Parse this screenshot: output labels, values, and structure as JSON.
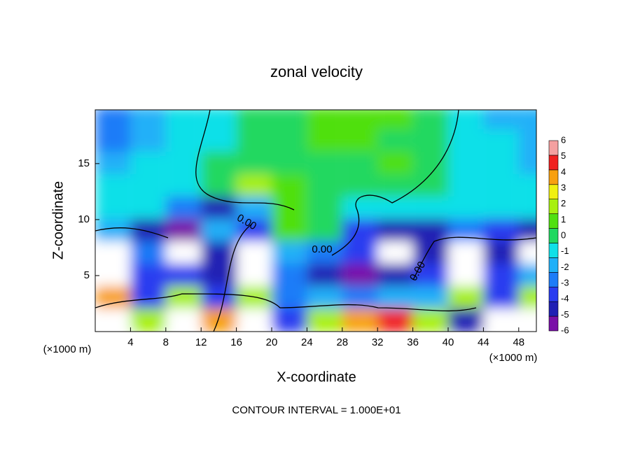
{
  "chart_data": {
    "type": "contour",
    "title": "zonal velocity",
    "xlabel": "X-coordinate",
    "ylabel": "Z-coordinate",
    "x_unit_left": "(×1000 m)",
    "x_unit_right": "(×1000 m)",
    "footer": "CONTOUR INTERVAL = 1.000E+01",
    "contour_labels": [
      {
        "value": 0,
        "label": "0.00"
      },
      {
        "value": 0,
        "label": "0.00"
      },
      {
        "value": 0,
        "label": "0.00"
      }
    ],
    "xlim": [
      0,
      50
    ],
    "ylim": [
      0,
      19.8
    ],
    "xticks": [
      4,
      8,
      12,
      16,
      20,
      24,
      28,
      32,
      36,
      40,
      44,
      48
    ],
    "yticks": [
      5,
      10,
      15
    ],
    "x": [
      2,
      6,
      10,
      14,
      18,
      22,
      26,
      30,
      34,
      38,
      42,
      46,
      50
    ],
    "y": [
      19,
      17,
      15,
      13,
      11,
      9,
      7,
      5,
      3,
      1
    ],
    "z": [
      [
        -2,
        -1.5,
        -0.5,
        0,
        0.5,
        1,
        1.5,
        2,
        1.5,
        0.5,
        0,
        -1,
        -1.5
      ],
      [
        -2,
        -1,
        0,
        0,
        0.5,
        1,
        1.5,
        1.5,
        1,
        0.5,
        0,
        -0.5,
        -1
      ],
      [
        -1,
        -0.5,
        0,
        0.5,
        1,
        1,
        1,
        1,
        1.5,
        1,
        0,
        -0.5,
        -1
      ],
      [
        0,
        0,
        0,
        1,
        2.5,
        1.5,
        1,
        1,
        1,
        0.5,
        0,
        0,
        -0.5
      ],
      [
        0,
        0,
        -2,
        -4,
        -1,
        1.5,
        1,
        0,
        0,
        0,
        0,
        0,
        -0.5
      ],
      [
        -1,
        -4,
        -5,
        -1,
        -3,
        2,
        1,
        -3,
        -4,
        -4,
        -2,
        -3,
        -4
      ],
      [
        7,
        -2,
        7,
        -4,
        7,
        -1,
        -2,
        -3,
        7,
        -4,
        7,
        -4,
        7
      ],
      [
        7,
        -3,
        -3,
        -4,
        7,
        -2,
        -4,
        -5,
        -4,
        -3,
        7,
        -3,
        -1
      ],
      [
        5,
        -3,
        3,
        -3,
        3,
        -2,
        -1,
        -2,
        -1,
        -1,
        3,
        -3,
        3
      ],
      [
        7,
        3,
        7,
        5,
        7,
        -3,
        3,
        5,
        6,
        3,
        -4,
        7,
        7
      ]
    ],
    "cticks": [
      -6,
      -5,
      -4,
      -3,
      -2,
      -1,
      0,
      1,
      2,
      3,
      4,
      5,
      6
    ],
    "colors": [
      "#7a10a8",
      "#2020b4",
      "#2a3cf0",
      "#1e7cf8",
      "#20b0f8",
      "#10e0e8",
      "#20d860",
      "#50e010",
      "#a8f010",
      "#f0f010",
      "#f8a010",
      "#f02020",
      "#f4a0a0"
    ],
    "out_of_range_color": "#ffffff"
  }
}
